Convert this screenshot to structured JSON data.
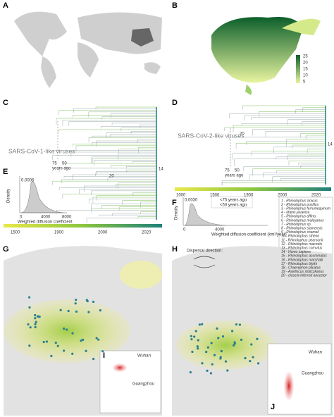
{
  "panels": [
    "A",
    "B",
    "C",
    "D",
    "E",
    "F",
    "G",
    "H",
    "I",
    "J"
  ],
  "panel_b": {
    "legend_ticks": [
      "25",
      "20",
      "15",
      "10",
      "5"
    ]
  },
  "panel_c": {
    "title": "SARS-CoV-1-like viruses",
    "marker_a": "75",
    "marker_b": "50",
    "marker_unit": "years ago",
    "axis": [
      "1500",
      "1900",
      "2000",
      "2020"
    ],
    "tip_labels": [
      "14",
      "20"
    ]
  },
  "panel_d": {
    "title": "SARS-CoV-2-like viruses",
    "marker_a": "75",
    "marker_b": "50",
    "marker_unit": "years ago",
    "axis": [
      "1000",
      "1500",
      "1900",
      "2000",
      "2020"
    ],
    "tip_labels": [
      "14",
      "20"
    ]
  },
  "panel_e": {
    "y_label": "Density",
    "y_tick": "0.0006",
    "x_label": "Weighted diffusion coefficient",
    "x_ticks": [
      "0",
      "4000",
      "8000"
    ]
  },
  "panel_f": {
    "y_label": "Density",
    "y_tick": "0.0030",
    "x_label": "Weighted diffusion coefficient (km²/year)",
    "x_ticks": [
      "0",
      "4000"
    ],
    "legend": [
      "<75 years ago",
      "<50 years ago"
    ]
  },
  "hosts": [
    "1 - Rhinolophus sinicus",
    "2 - Rhinolophus pusillus",
    "3 - Rhinolophus ferrumequinum",
    "4 - Manis javanica",
    "5 - Rhinolophus affinis",
    "6 - Rhinolophus malayanus",
    "7 - Rhinolophus sp.",
    "8 - Rhinolophus siamensis",
    "9 - Rhinolophus shameli",
    "10 - Rhinolophus stheno",
    "11 - Rhinolophus pearsonii",
    "12 - Rhinolophus macrotis",
    "13 - Rhinolophus cornutus",
    "14 - Homo sapiens",
    "15 - Rhinolophus acuminatus",
    "16 - Rhinolophus marshalli",
    "17 - Rhinolophus blythi",
    "18 - Chaerephon plicatus",
    "19 - Aselliscus stoliczkanus",
    "20 - closest-inferred ancestor"
  ],
  "panel_h": {
    "dispersal": "Dispersal direction:"
  },
  "panel_i": {
    "cities": [
      "Wuhan",
      "Guangzhou"
    ]
  },
  "panel_j": {
    "cities": [
      "Wuhan",
      "Guangzhou"
    ]
  }
}
